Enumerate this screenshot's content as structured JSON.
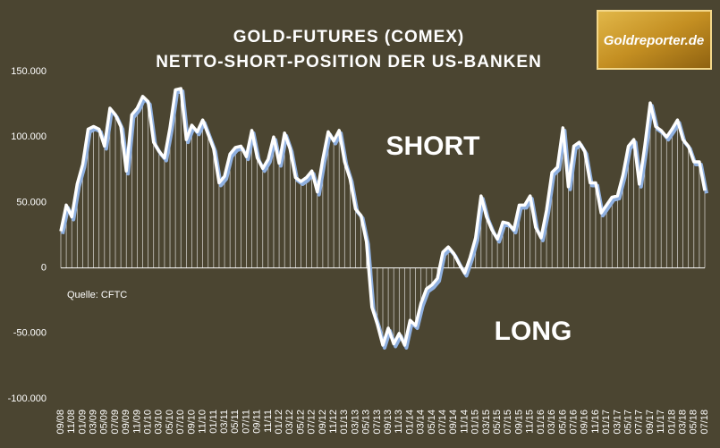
{
  "chart_data": {
    "type": "line",
    "title": "GOLD-FUTURES (COMEX)",
    "subtitle": "NETTO-SHORT-POSITION DER US-BANKEN",
    "annotations": [
      "SHORT",
      "LONG"
    ],
    "source": "Quelle: CFTC",
    "logo": "Goldreporter.de",
    "color": "#ffffff",
    "shadow_color": "#8fb0e0",
    "ylim": [
      -100000,
      150000
    ],
    "yticks": [
      {
        "value": 150000,
        "label": "150.000"
      },
      {
        "value": 100000,
        "label": "100.000"
      },
      {
        "value": 50000,
        "label": "50.000"
      },
      0,
      {
        "value": -50000,
        "label": "-50.000"
      },
      {
        "value": -100000,
        "label": "-100.000"
      }
    ],
    "categories": [
      "09/08",
      null,
      "11/08",
      null,
      "01/09",
      null,
      "03/09",
      null,
      "05/09",
      null,
      "07/09",
      null,
      "09/09",
      null,
      "11/09",
      null,
      "01/10",
      null,
      "03/10",
      null,
      "05/10",
      null,
      "07/10",
      null,
      "09/10",
      null,
      "11/10",
      null,
      "01/11",
      null,
      "03/11",
      null,
      "05/11",
      null,
      "07/11",
      null,
      "09/11",
      null,
      "11/11",
      null,
      "01/12",
      null,
      "03/12",
      null,
      "05/12",
      null,
      "07/12",
      null,
      "09/12",
      null,
      "11/12",
      null,
      "01/13",
      null,
      "03/13",
      null,
      "05/13",
      null,
      "07/13",
      null,
      "09/13",
      null,
      "11/13",
      null,
      "01/14",
      null,
      "03/14",
      null,
      "05/14",
      null,
      "07/14",
      null,
      "09/14",
      null,
      "11/14",
      null,
      "01/15",
      null,
      "03/15",
      null,
      "05/15",
      null,
      "07/15",
      null,
      "09/15",
      null,
      "11/15",
      null,
      "01/16",
      null,
      "03/16",
      null,
      "05/16",
      null,
      "07/16",
      null,
      "09/16",
      null,
      "11/16",
      null,
      "01/17",
      null,
      "03/17",
      null,
      "05/17",
      null,
      "07/17",
      null,
      "09/17",
      null,
      "11/17",
      null,
      "01/18",
      null,
      "03/18",
      null,
      "05/18",
      null,
      "07/18"
    ],
    "values": [
      28000,
      48000,
      39000,
      64000,
      79000,
      106000,
      108000,
      106000,
      93000,
      122000,
      117000,
      108000,
      74000,
      117000,
      122000,
      131000,
      127000,
      96000,
      89000,
      84000,
      107000,
      136000,
      137000,
      98000,
      109000,
      104000,
      113000,
      102000,
      91000,
      65000,
      70000,
      87000,
      92000,
      93000,
      85000,
      105000,
      84000,
      76000,
      83000,
      100000,
      80000,
      103000,
      91000,
      69000,
      66000,
      69000,
      74000,
      58000,
      83000,
      104000,
      97000,
      105000,
      81000,
      68000,
      45000,
      40000,
      20000,
      -30000,
      -43000,
      -59000,
      -46000,
      -58000,
      -50000,
      -59000,
      -40000,
      -44000,
      -27000,
      -16000,
      -13000,
      -8000,
      12000,
      16000,
      11000,
      3000,
      -4000,
      8000,
      23000,
      55000,
      39000,
      29000,
      22000,
      35000,
      34000,
      29000,
      48000,
      48000,
      55000,
      31000,
      23000,
      44000,
      73000,
      77000,
      107000,
      62000,
      93000,
      96000,
      89000,
      65000,
      65000,
      42000,
      48000,
      54000,
      55000,
      71000,
      93000,
      98000,
      64000,
      93000,
      126000,
      108000,
      105000,
      100000,
      106000,
      113000,
      98000,
      93000,
      81000,
      81000,
      59000
    ]
  }
}
